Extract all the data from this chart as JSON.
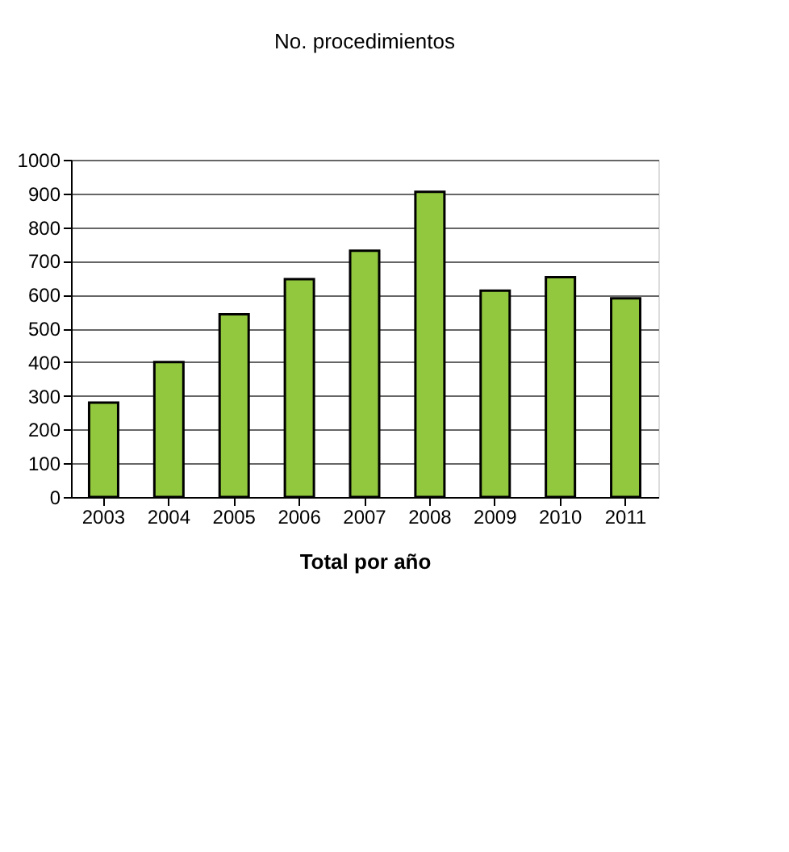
{
  "chart_data": {
    "type": "bar",
    "title": "No. procedimientos",
    "xlabel": "Total por año",
    "categories": [
      "2003",
      "2004",
      "2005",
      "2006",
      "2007",
      "2008",
      "2009",
      "2010",
      "2011"
    ],
    "values": [
      280,
      400,
      542,
      646,
      730,
      905,
      612,
      652,
      589
    ],
    "color": "#92c83e",
    "ylim": [
      0,
      1000
    ],
    "yticks": [
      0,
      100,
      200,
      300,
      400,
      500,
      600,
      700,
      800,
      900,
      1000
    ],
    "grid": "y"
  }
}
